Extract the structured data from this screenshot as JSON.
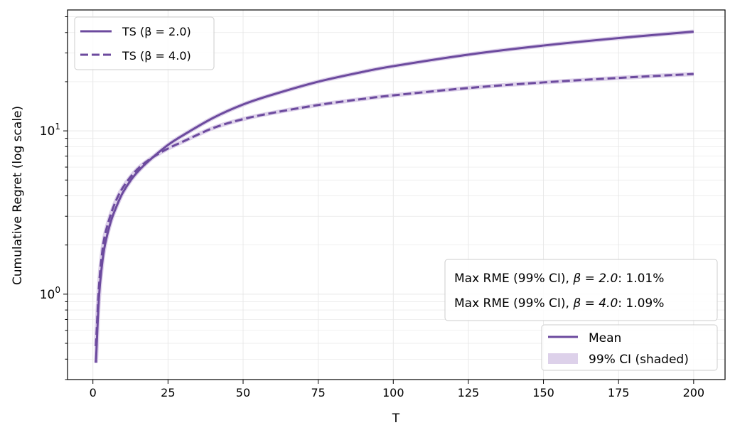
{
  "chart_data": {
    "type": "line",
    "title": "",
    "xlabel": "T",
    "ylabel": "Cumulative Regret (log scale)",
    "xlim": [
      -8.45,
      210.45
    ],
    "ylim": [
      0.3,
      55
    ],
    "yscale": "log",
    "grid": true,
    "x_ticks": [
      0,
      25,
      50,
      75,
      100,
      125,
      150,
      175,
      200
    ],
    "y_ticks": [
      {
        "value": 1,
        "base": "10",
        "exp": "0"
      },
      {
        "value": 10,
        "base": "10",
        "exp": "1"
      }
    ],
    "x": [
      1,
      2,
      3,
      4,
      6,
      8,
      10,
      13,
      16,
      20,
      25,
      30,
      40,
      50,
      60,
      75,
      90,
      100,
      125,
      150,
      175,
      200
    ],
    "series": [
      {
        "name": "TS (β = 2.0)",
        "style": "solid",
        "values": [
          0.38,
          0.95,
          1.5,
          2.0,
          2.8,
          3.5,
          4.2,
          5.1,
          5.9,
          6.9,
          8.2,
          9.4,
          12.0,
          14.5,
          16.7,
          20.0,
          23.0,
          24.9,
          29.3,
          33.3,
          37.0,
          40.5
        ]
      },
      {
        "name": "TS (β = 4.0)",
        "style": "dashed",
        "values": [
          0.48,
          1.1,
          1.75,
          2.3,
          3.1,
          3.85,
          4.5,
          5.35,
          6.1,
          6.9,
          7.8,
          8.6,
          10.4,
          11.8,
          12.9,
          14.4,
          15.7,
          16.5,
          18.3,
          19.8,
          21.1,
          22.3
        ]
      }
    ],
    "legend_series": {
      "position": "top-left",
      "entries": [
        "TS (β = 2.0)",
        "TS (β = 4.0)"
      ]
    },
    "annotation": {
      "position": "right",
      "lines": [
        {
          "pre": "Max RME (99% CI), ",
          "beta": "β = 2.0",
          "post": ": 1.01%"
        },
        {
          "pre": "Max RME (99% CI), ",
          "beta": "β = 4.0",
          "post": ": 1.09%"
        }
      ]
    },
    "legend_style": {
      "position": "bottom-right",
      "entries": [
        "Mean",
        "99% CI (shaded)"
      ]
    },
    "colors": {
      "line": "#6c4a9e",
      "ci_fill": "#ddd1ea",
      "grid": "#e8e8e8"
    }
  }
}
